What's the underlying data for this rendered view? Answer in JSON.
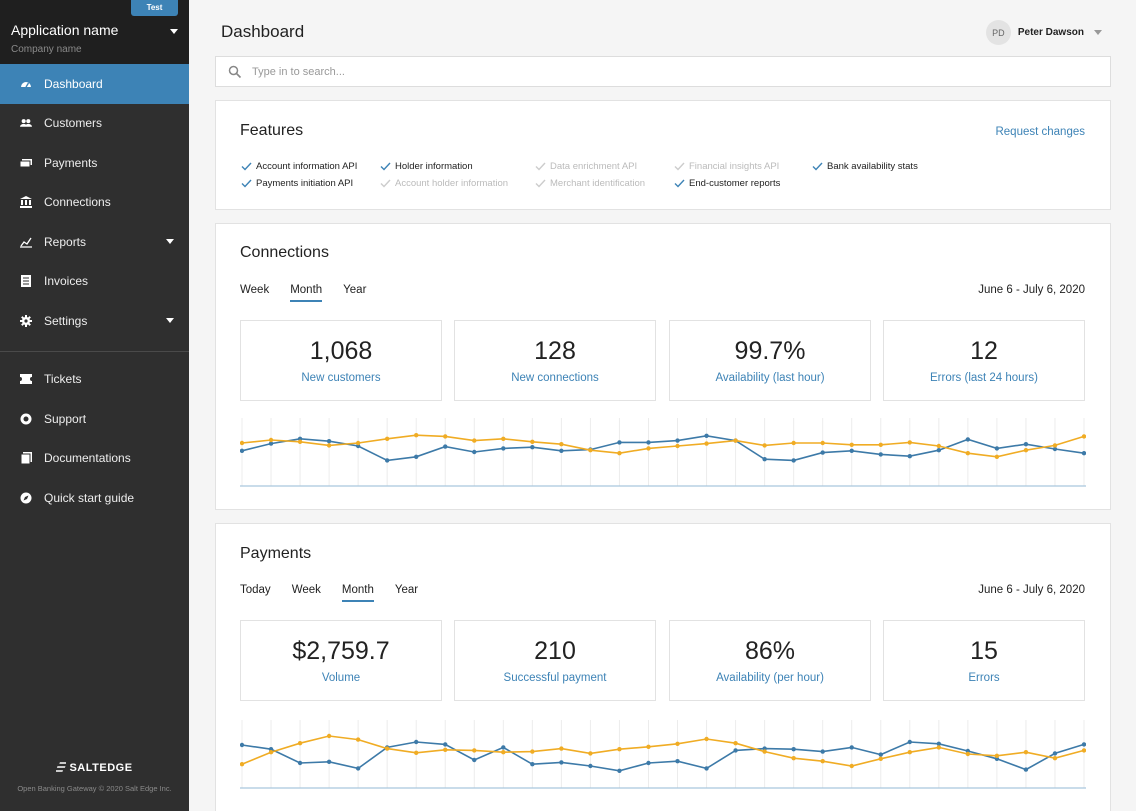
{
  "sidebar": {
    "env_badge": "Test",
    "app_name": "Application name",
    "company_name": "Company name",
    "items": [
      {
        "label": "Dashboard",
        "icon": "speedometer-icon",
        "active": true
      },
      {
        "label": "Customers",
        "icon": "users-icon"
      },
      {
        "label": "Payments",
        "icon": "money-icon"
      },
      {
        "label": "Connections",
        "icon": "bank-icon"
      },
      {
        "label": "Reports",
        "icon": "chart-icon",
        "has_submenu": true
      },
      {
        "label": "Invoices",
        "icon": "document-icon"
      },
      {
        "label": "Settings",
        "icon": "gear-icon",
        "has_submenu": true
      }
    ],
    "items_secondary": [
      {
        "label": "Tickets",
        "icon": "ticket-icon"
      },
      {
        "label": "Support",
        "icon": "support-icon"
      },
      {
        "label": "Documentations",
        "icon": "docs-icon"
      },
      {
        "label": "Quick start guide",
        "icon": "compass-icon"
      }
    ],
    "brand": "SALTEDGE",
    "footer": "Open Banking Gateway © 2020 Salt Edge Inc."
  },
  "header": {
    "title": "Dashboard",
    "user_initials": "PD",
    "user_name": "Peter Dawson"
  },
  "search": {
    "placeholder": "Type in to search..."
  },
  "features": {
    "title": "Features",
    "request_link": "Request changes",
    "items": [
      {
        "label": "Account information API",
        "enabled": true
      },
      {
        "label": "Payments initiation API",
        "enabled": true
      },
      {
        "label": "Holder information",
        "enabled": true
      },
      {
        "label": "Account holder information",
        "enabled": false
      },
      {
        "label": "Data enrichment API",
        "enabled": false
      },
      {
        "label": "Merchant identification",
        "enabled": false
      },
      {
        "label": "Financial insights API",
        "enabled": false
      },
      {
        "label": "End-customer reports",
        "enabled": true
      },
      {
        "label": "Bank availability stats",
        "enabled": true
      }
    ]
  },
  "connections": {
    "title": "Connections",
    "tabs": [
      "Week",
      "Month",
      "Year"
    ],
    "active_tab": "Month",
    "date_range": "June 6  -  July 6, 2020",
    "stats": [
      {
        "value": "1,068",
        "label": "New customers"
      },
      {
        "value": "128",
        "label": "New connections"
      },
      {
        "value": "99.7%",
        "label": "Availability (last hour)"
      },
      {
        "value": "12",
        "label": "Errors (last 24 hours)"
      }
    ]
  },
  "payments": {
    "title": "Payments",
    "tabs": [
      "Today",
      "Week",
      "Month",
      "Year"
    ],
    "active_tab": "Month",
    "date_range": "June 6  -  July 6, 2020",
    "stats": [
      {
        "value": "$2,759.7",
        "label": "Volume"
      },
      {
        "value": "210",
        "label": "Successful payment"
      },
      {
        "value": "86%",
        "label": "Availability (per hour)"
      },
      {
        "value": "15",
        "label": "Errors"
      }
    ]
  },
  "colors": {
    "accent": "#3d83b6",
    "series_blue": "#3d7aa8",
    "series_orange": "#f0ac24",
    "sidebar_bg": "#2f2f2f"
  },
  "chart_data": [
    {
      "type": "line",
      "ylim": [
        0,
        10
      ],
      "grid": "vertical",
      "series": [
        {
          "color": "#3d7aa8",
          "values": [
            5.2,
            6.4,
            7.2,
            6.8,
            6.0,
            3.6,
            4.2,
            5.9,
            5.0,
            5.6,
            5.8,
            5.2,
            5.4,
            6.6,
            6.6,
            6.9,
            7.7,
            6.9,
            3.8,
            3.6,
            4.9,
            5.2,
            4.6,
            4.3,
            5.3,
            7.1,
            5.6,
            6.3,
            5.5,
            4.8
          ]
        },
        {
          "color": "#f0ac24",
          "values": [
            6.5,
            7.0,
            6.7,
            6.1,
            6.5,
            7.2,
            7.8,
            7.6,
            6.9,
            7.2,
            6.7,
            6.3,
            5.3,
            4.8,
            5.6,
            6.0,
            6.4,
            6.9,
            6.1,
            6.5,
            6.5,
            6.2,
            6.2,
            6.6,
            6.0,
            4.8,
            4.2,
            5.3,
            6.1,
            7.6
          ]
        }
      ]
    },
    {
      "type": "line",
      "ylim": [
        0,
        10
      ],
      "grid": "vertical",
      "series": [
        {
          "color": "#3d7aa8",
          "values": [
            6.5,
            5.8,
            3.5,
            3.7,
            2.6,
            6.1,
            7.0,
            6.6,
            4.0,
            6.1,
            3.3,
            3.6,
            3.0,
            2.2,
            3.5,
            3.8,
            2.6,
            5.6,
            5.9,
            5.8,
            5.4,
            6.1,
            4.9,
            7.0,
            6.7,
            5.5,
            4.2,
            2.4,
            5.1,
            6.6
          ]
        },
        {
          "color": "#f0ac24",
          "values": [
            3.3,
            5.3,
            6.8,
            8.0,
            7.4,
            5.9,
            5.2,
            5.7,
            5.6,
            5.3,
            5.4,
            5.9,
            5.1,
            5.8,
            6.2,
            6.7,
            7.5,
            6.8,
            5.4,
            4.3,
            3.8,
            3.0,
            4.2,
            5.3,
            6.1,
            5.0,
            4.7,
            5.3,
            4.3,
            5.6
          ]
        }
      ]
    }
  ]
}
